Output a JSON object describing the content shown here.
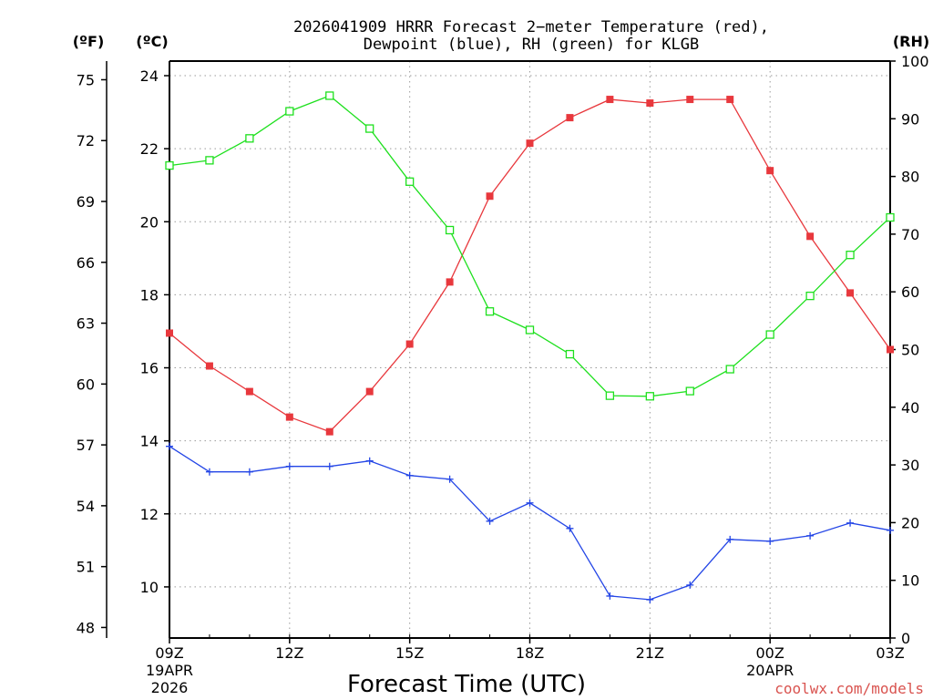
{
  "chart_data": {
    "type": "line",
    "title_line1": "2026041909 HRRR Forecast 2−meter Temperature (red),",
    "title_line2": "Dewpoint (blue), RH (green) for KLGB",
    "xlabel": "Forecast Time (UTC)",
    "credit": "coolwx.com/models",
    "units": {
      "fahrenheit": "(ºF)",
      "celsius": "(ºC)",
      "rh": "(RH)"
    },
    "x_hours": [
      0,
      1,
      2,
      3,
      4,
      5,
      6,
      7,
      8,
      9,
      10,
      11,
      12,
      13,
      14,
      15,
      16,
      17,
      18
    ],
    "x_ticks": [
      {
        "hour": 0,
        "label": "09Z",
        "sub1": "19APR",
        "sub2": "2026"
      },
      {
        "hour": 3,
        "label": "12Z"
      },
      {
        "hour": 6,
        "label": "15Z"
      },
      {
        "hour": 9,
        "label": "18Z"
      },
      {
        "hour": 12,
        "label": "21Z"
      },
      {
        "hour": 15,
        "label": "00Z",
        "sub1": "20APR"
      },
      {
        "hour": 18,
        "label": "03Z"
      }
    ],
    "celsius_axis": {
      "min": 8.6,
      "max": 24.4,
      "ticks": [
        10,
        12,
        14,
        16,
        18,
        20,
        22,
        24
      ]
    },
    "fahrenheit_ticks": [
      48,
      51,
      54,
      57,
      60,
      63,
      66,
      69,
      72,
      75
    ],
    "rh_axis": {
      "min": 0,
      "max": 100,
      "ticks": [
        0,
        10,
        20,
        30,
        40,
        50,
        60,
        70,
        80,
        90,
        100
      ]
    },
    "series": [
      {
        "name": "Temperature",
        "unit": "C",
        "color": "#e8383d",
        "marker": "filled-square",
        "values": [
          16.95,
          16.05,
          15.35,
          14.65,
          14.25,
          15.35,
          16.65,
          18.35,
          20.7,
          22.15,
          22.85,
          23.35,
          23.25,
          23.35,
          23.35,
          21.4,
          19.6,
          18.05,
          16.5
        ]
      },
      {
        "name": "Dewpoint",
        "unit": "C",
        "color": "#2345e6",
        "marker": "plus",
        "values": [
          13.85,
          13.15,
          13.15,
          13.3,
          13.3,
          13.45,
          13.05,
          12.95,
          11.8,
          12.3,
          11.6,
          9.75,
          9.65,
          10.05,
          11.3,
          11.25,
          11.4,
          11.75,
          11.55
        ]
      },
      {
        "name": "RH",
        "unit": "%",
        "color": "#1ee01e",
        "marker": "open-square",
        "values": [
          81.9,
          82.8,
          86.6,
          91.3,
          94.0,
          88.3,
          79.1,
          70.7,
          56.6,
          53.4,
          49.2,
          42.0,
          41.9,
          42.8,
          46.6,
          52.6,
          59.3,
          66.4,
          72.9
        ]
      }
    ],
    "grid": true
  }
}
